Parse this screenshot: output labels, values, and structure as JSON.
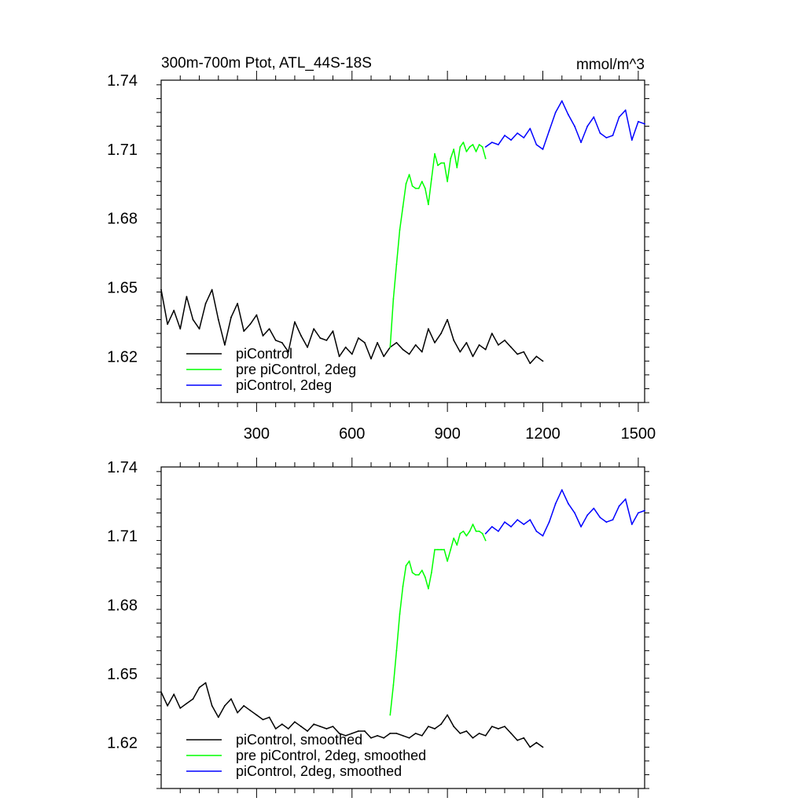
{
  "chart_data": [
    {
      "type": "line",
      "title": "300m-700m Ptot, ATL_44S-18S",
      "units": "mmol/m^3",
      "xlabel": "",
      "ylabel": "",
      "xlim": [
        0,
        1520
      ],
      "ylim": [
        1.6,
        1.74
      ],
      "x_ticks": [
        300,
        600,
        900,
        1200,
        1500
      ],
      "y_ticks": [
        1.62,
        1.65,
        1.68,
        1.71,
        1.74
      ],
      "x_tick_labels_visible": true,
      "grid": false,
      "legend_position": "bottom-left",
      "series": [
        {
          "name": "piControl",
          "color": "#000000",
          "x": [
            0,
            20,
            40,
            60,
            80,
            100,
            120,
            140,
            160,
            180,
            200,
            220,
            240,
            260,
            280,
            300,
            320,
            340,
            360,
            380,
            400,
            420,
            440,
            460,
            480,
            500,
            520,
            540,
            560,
            580,
            600,
            620,
            640,
            660,
            680,
            700,
            720,
            740,
            760,
            780,
            800,
            820,
            840,
            860,
            880,
            900,
            920,
            940,
            960,
            980,
            1000,
            1020,
            1040,
            1060,
            1080,
            1100,
            1120,
            1140,
            1160,
            1180,
            1200
          ],
          "values": [
            1.649,
            1.634,
            1.64,
            1.632,
            1.646,
            1.636,
            1.632,
            1.643,
            1.649,
            1.636,
            1.625,
            1.637,
            1.643,
            1.631,
            1.634,
            1.638,
            1.629,
            1.632,
            1.627,
            1.626,
            1.622,
            1.635,
            1.629,
            1.624,
            1.632,
            1.628,
            1.627,
            1.631,
            1.62,
            1.624,
            1.621,
            1.628,
            1.626,
            1.619,
            1.626,
            1.62,
            1.624,
            1.626,
            1.623,
            1.621,
            1.625,
            1.622,
            1.632,
            1.626,
            1.63,
            1.636,
            1.627,
            1.622,
            1.626,
            1.62,
            1.625,
            1.623,
            1.63,
            1.625,
            1.627,
            1.624,
            1.621,
            1.622,
            1.617,
            1.62,
            1.618
          ]
        },
        {
          "name": "pre piControl, 2deg",
          "color": "#00ff00",
          "x": [
            720,
            730,
            740,
            750,
            760,
            770,
            780,
            790,
            800,
            810,
            820,
            830,
            840,
            850,
            860,
            870,
            880,
            890,
            900,
            910,
            920,
            930,
            940,
            950,
            960,
            970,
            980,
            990,
            1000,
            1010,
            1020
          ],
          "values": [
            1.624,
            1.645,
            1.66,
            1.675,
            1.685,
            1.695,
            1.699,
            1.694,
            1.693,
            1.693,
            1.696,
            1.693,
            1.686,
            1.697,
            1.708,
            1.703,
            1.704,
            1.704,
            1.696,
            1.706,
            1.71,
            1.702,
            1.711,
            1.713,
            1.709,
            1.711,
            1.712,
            1.709,
            1.712,
            1.711,
            1.706
          ]
        },
        {
          "name": "piControl, 2deg",
          "color": "#0000ff",
          "x": [
            1020,
            1040,
            1060,
            1080,
            1100,
            1120,
            1140,
            1160,
            1180,
            1200,
            1220,
            1240,
            1260,
            1280,
            1300,
            1320,
            1340,
            1360,
            1380,
            1400,
            1420,
            1440,
            1460,
            1480,
            1500,
            1520
          ],
          "values": [
            1.711,
            1.713,
            1.712,
            1.716,
            1.714,
            1.717,
            1.715,
            1.719,
            1.712,
            1.71,
            1.718,
            1.726,
            1.731,
            1.725,
            1.72,
            1.713,
            1.72,
            1.724,
            1.717,
            1.715,
            1.716,
            1.724,
            1.727,
            1.714,
            1.722,
            1.721
          ]
        }
      ]
    },
    {
      "type": "line",
      "title": "",
      "xlabel": "",
      "ylabel": "",
      "xlim": [
        0,
        1520
      ],
      "ylim": [
        1.6,
        1.74
      ],
      "x_ticks": [
        300,
        600,
        900,
        1200,
        1500
      ],
      "y_ticks": [
        1.62,
        1.65,
        1.68,
        1.71,
        1.74
      ],
      "x_tick_labels_visible": false,
      "grid": false,
      "legend_position": "bottom-left",
      "series": [
        {
          "name": "piControl, smoothed",
          "color": "#000000",
          "x": [
            0,
            20,
            40,
            60,
            80,
            100,
            120,
            140,
            160,
            180,
            200,
            220,
            240,
            260,
            280,
            300,
            320,
            340,
            360,
            380,
            400,
            420,
            440,
            460,
            480,
            500,
            520,
            540,
            560,
            580,
            600,
            620,
            640,
            660,
            680,
            700,
            720,
            740,
            760,
            780,
            800,
            820,
            840,
            860,
            880,
            900,
            920,
            940,
            960,
            980,
            1000,
            1020,
            1040,
            1060,
            1080,
            1100,
            1120,
            1140,
            1160,
            1180,
            1200
          ],
          "values": [
            1.642,
            1.636,
            1.641,
            1.635,
            1.637,
            1.639,
            1.644,
            1.646,
            1.636,
            1.631,
            1.636,
            1.639,
            1.633,
            1.636,
            1.634,
            1.632,
            1.63,
            1.631,
            1.626,
            1.628,
            1.626,
            1.629,
            1.627,
            1.625,
            1.628,
            1.627,
            1.626,
            1.627,
            1.624,
            1.623,
            1.624,
            1.625,
            1.625,
            1.622,
            1.623,
            1.622,
            1.624,
            1.624,
            1.623,
            1.622,
            1.624,
            1.623,
            1.627,
            1.626,
            1.628,
            1.632,
            1.627,
            1.624,
            1.625,
            1.622,
            1.624,
            1.623,
            1.627,
            1.626,
            1.627,
            1.624,
            1.621,
            1.622,
            1.618,
            1.62,
            1.618
          ]
        },
        {
          "name": "pre piControl, 2deg, smoothed",
          "color": "#00ff00",
          "x": [
            720,
            730,
            740,
            750,
            760,
            770,
            780,
            790,
            800,
            810,
            820,
            830,
            840,
            850,
            860,
            870,
            880,
            890,
            900,
            910,
            920,
            930,
            940,
            950,
            960,
            970,
            980,
            990,
            1000,
            1010,
            1020
          ],
          "values": [
            1.632,
            1.645,
            1.66,
            1.676,
            1.688,
            1.697,
            1.699,
            1.694,
            1.693,
            1.693,
            1.695,
            1.692,
            1.687,
            1.694,
            1.704,
            1.704,
            1.704,
            1.704,
            1.699,
            1.704,
            1.709,
            1.706,
            1.711,
            1.712,
            1.71,
            1.712,
            1.715,
            1.712,
            1.712,
            1.711,
            1.708
          ]
        },
        {
          "name": "piControl, 2deg, smoothed",
          "color": "#0000ff",
          "x": [
            1020,
            1040,
            1060,
            1080,
            1100,
            1120,
            1140,
            1160,
            1180,
            1200,
            1220,
            1240,
            1260,
            1280,
            1300,
            1320,
            1340,
            1360,
            1380,
            1400,
            1420,
            1440,
            1460,
            1480,
            1500,
            1520
          ],
          "values": [
            1.711,
            1.714,
            1.712,
            1.716,
            1.714,
            1.717,
            1.715,
            1.717,
            1.712,
            1.71,
            1.716,
            1.724,
            1.73,
            1.724,
            1.72,
            1.714,
            1.719,
            1.722,
            1.718,
            1.716,
            1.717,
            1.723,
            1.726,
            1.715,
            1.72,
            1.721
          ]
        }
      ]
    }
  ]
}
